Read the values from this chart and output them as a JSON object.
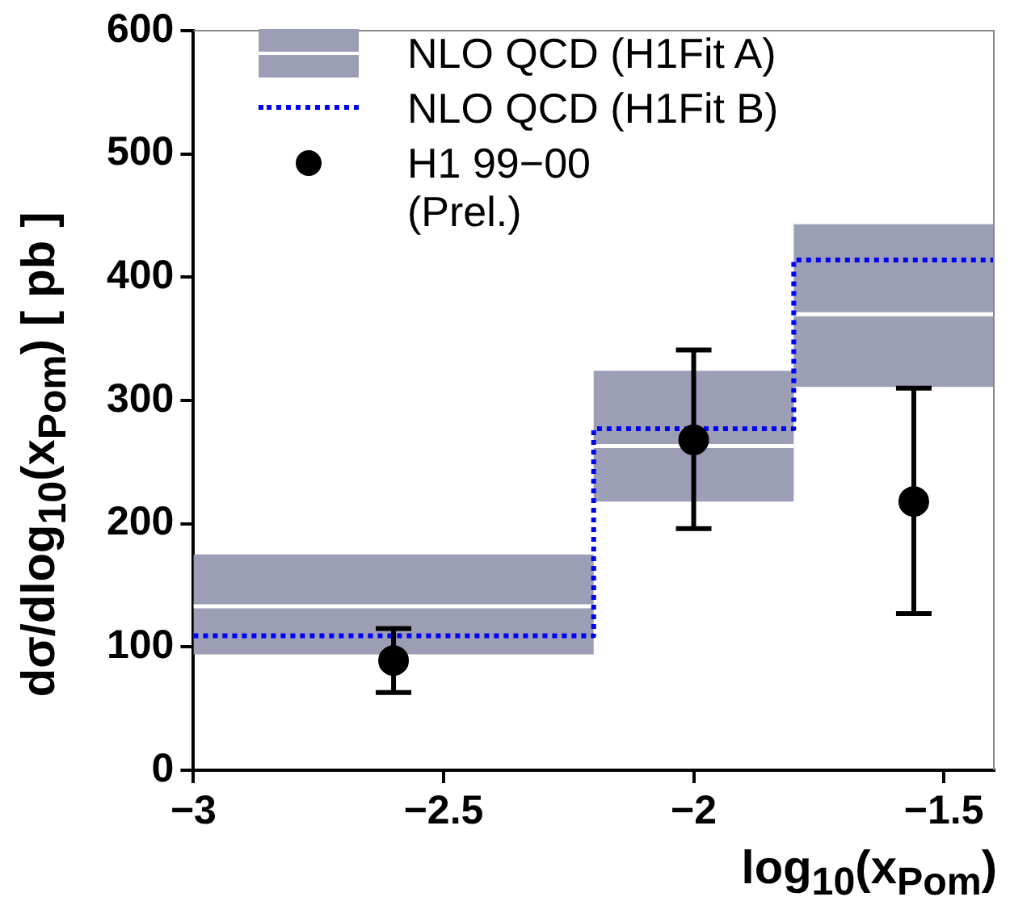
{
  "chart_data": {
    "type": "step",
    "xlabel": "log$_{10}$(x$_{Pom}$)",
    "ylabel": "dσ/dlog$_{10}$(x$_{Pom}$) [ pb ]",
    "series": [
      {
        "name": "NLO QCD (H1Fit A)",
        "color": "#ffffff",
        "x": [
          -3,
          -2.2,
          -1.8,
          -1.4
        ],
        "values": [
          133,
          263,
          370,
          370
        ],
        "lower": [
          94,
          218,
          311,
          311
        ],
        "upper": [
          175,
          324,
          443,
          443
        ]
      },
      {
        "name": "NLO QCD (H1Fit B)",
        "color": "#0000ff",
        "line_style": "dotted",
        "x": [
          -3,
          -2.2,
          -1.8,
          -1.4
        ],
        "values": [
          109,
          277,
          414,
          414
        ]
      },
      {
        "name": "H1 99−00\n(Prel.)",
        "type": "scatter",
        "color": "#000000",
        "marker": "circle",
        "x": [
          -2.6,
          -2.0,
          -1.56
        ],
        "values": [
          89,
          268,
          218
        ],
        "errors": [
          [
            63,
            115
          ],
          [
            196,
            341
          ],
          [
            127,
            310
          ]
        ]
      }
    ],
    "xlim": [
      -3,
      -1.4
    ],
    "xticks": [
      {
        "value": -3,
        "label": "−3"
      },
      {
        "value": -2.5,
        "label": "−2.5"
      },
      {
        "value": -2,
        "label": "−2"
      },
      {
        "value": -1.5,
        "label": "−1.5"
      }
    ],
    "ylim": [
      0,
      600
    ],
    "yticks": [
      0,
      100,
      200,
      300,
      400,
      500,
      600
    ],
    "grid": false,
    "legend": "top left"
  }
}
